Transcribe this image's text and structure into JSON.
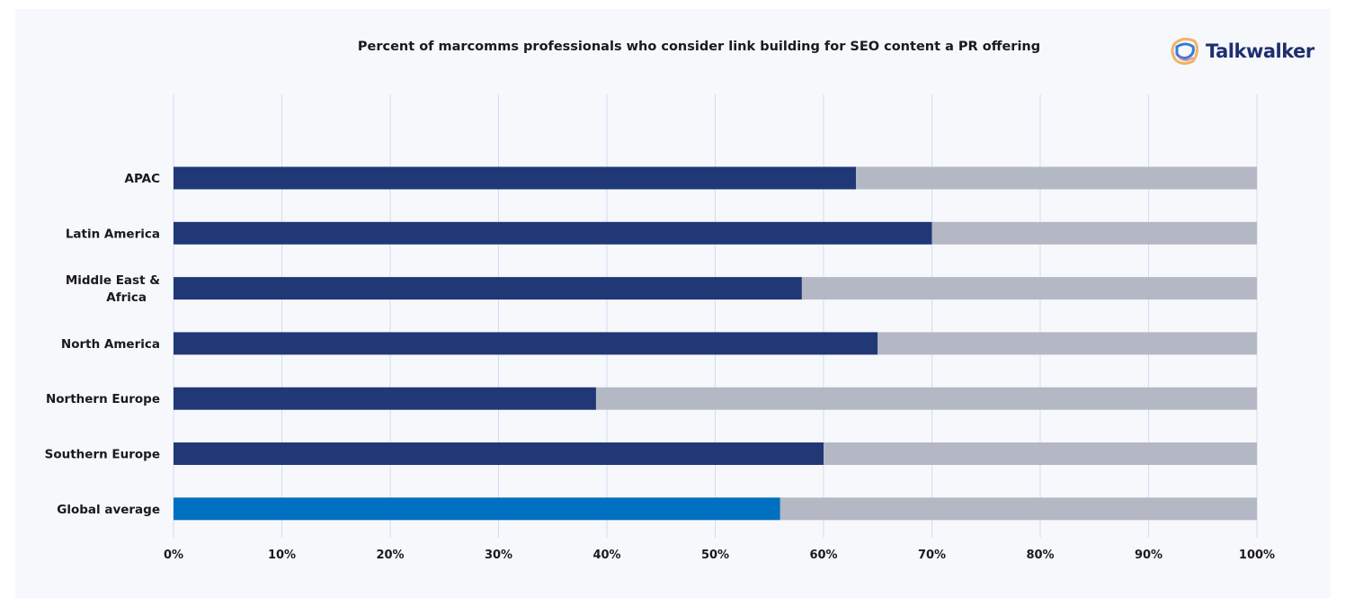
{
  "logo": {
    "text": "Talkwalker"
  },
  "chart_data": {
    "type": "bar",
    "orientation": "horizontal",
    "stacked": true,
    "title": "Percent of marcomms professionals who consider link building for SEO content a PR offering",
    "categories": [
      "APAC",
      "Latin America",
      "Middle East & Africa",
      "North America",
      "Northern Europe",
      "Southern Europe",
      "Global average"
    ],
    "series": [
      {
        "values": [
          63,
          70,
          58,
          65,
          39,
          60,
          56
        ],
        "color": "#213876",
        "highlight_color": "#0070c0"
      },
      {
        "values": [
          37,
          30,
          42,
          35,
          61,
          40,
          44
        ],
        "color": "#b4b8c5"
      }
    ],
    "xlim": [
      0,
      100
    ],
    "xticks": [
      "0%",
      "10%",
      "20%",
      "30%",
      "40%",
      "50%",
      "60%",
      "70%",
      "80%",
      "90%",
      "100%"
    ],
    "grid": true,
    "legend": "none"
  }
}
